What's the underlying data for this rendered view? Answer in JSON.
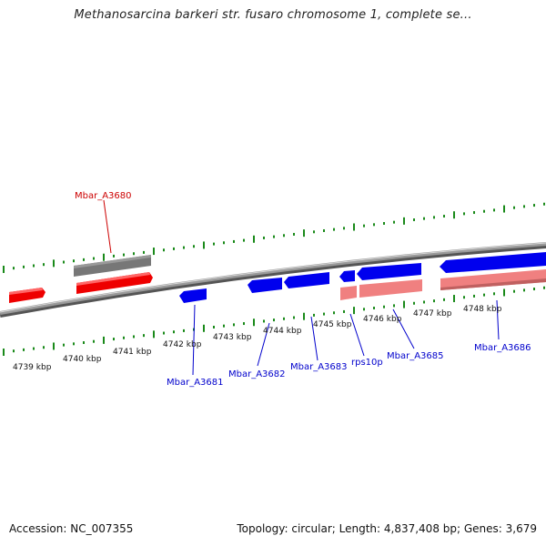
{
  "title": "Methanosarcina barkeri str. fusaro chromosome 1, complete se...",
  "footer": {
    "accession": "Accession: NC_007355",
    "topology": "Topology: circular; Length: 4,837,408 bp; Genes: 3,679"
  },
  "colors": {
    "forward_gene": "#ff0000",
    "reverse_gene": "#0000ff",
    "forward_rna_gene": "#f08080",
    "highlighted_gene": "#777777",
    "backbone": "#8a8a8a",
    "tick": "#1a8a1a",
    "forward_label": "#cc0000",
    "reverse_label": "#0000cc"
  },
  "ticks": [
    {
      "label": "4739 kbp"
    },
    {
      "label": "4740 kbp"
    },
    {
      "label": "4741 kbp"
    },
    {
      "label": "4742 kbp"
    },
    {
      "label": "4743 kbp"
    },
    {
      "label": "4744 kbp"
    },
    {
      "label": "4745 kbp"
    },
    {
      "label": "4746 kbp"
    },
    {
      "label": "4747 kbp"
    },
    {
      "label": "4748 kbp"
    }
  ],
  "gene_labels": [
    {
      "name": "Mbar_A3680",
      "strand": "forward"
    },
    {
      "name": "Mbar_A3681",
      "strand": "reverse"
    },
    {
      "name": "Mbar_A3682",
      "strand": "reverse"
    },
    {
      "name": "Mbar_A3683",
      "strand": "reverse"
    },
    {
      "name": "rps10p",
      "strand": "reverse"
    },
    {
      "name": "Mbar_A3685",
      "strand": "reverse"
    },
    {
      "name": "Mbar_A3686",
      "strand": "reverse"
    }
  ]
}
